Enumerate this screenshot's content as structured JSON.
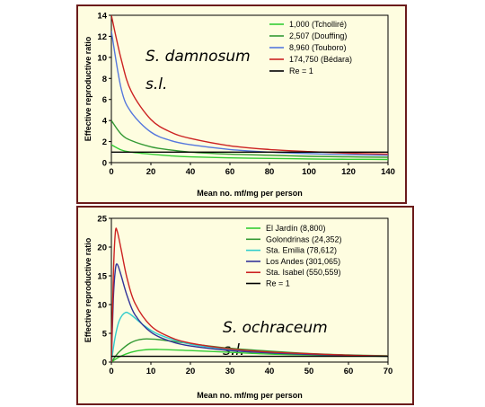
{
  "chart_data": [
    {
      "type": "line",
      "xlabel": "Mean no. mf/mg per person",
      "ylabel": "Effective reproductive ratio",
      "xlim": [
        0,
        140
      ],
      "ylim": [
        0,
        14
      ],
      "xticks": [
        0,
        20,
        40,
        60,
        80,
        100,
        120,
        140
      ],
      "yticks": [
        0,
        2,
        4,
        6,
        8,
        10,
        12,
        14
      ],
      "annotation": [
        "S. damnosum",
        "s.l."
      ],
      "legend_position": "top-right",
      "series": [
        {
          "name": "1,000 (Tcholliré)",
          "color": "#33cc33",
          "x": [
            0,
            5,
            10,
            20,
            30,
            40,
            60,
            80,
            100,
            120,
            140
          ],
          "y": [
            1.7,
            1.2,
            1.0,
            0.8,
            0.65,
            0.55,
            0.45,
            0.4,
            0.35,
            0.32,
            0.3
          ]
        },
        {
          "name": "2,507 (Douffing)",
          "color": "#339933",
          "x": [
            0,
            5,
            10,
            20,
            30,
            40,
            60,
            80,
            100,
            120,
            140
          ],
          "y": [
            4.0,
            2.7,
            2.1,
            1.5,
            1.2,
            1.0,
            0.8,
            0.7,
            0.6,
            0.55,
            0.5
          ]
        },
        {
          "name": "8,960 (Touboro)",
          "color": "#5577dd",
          "x": [
            0,
            5,
            10,
            20,
            30,
            40,
            60,
            80,
            100,
            120,
            140
          ],
          "y": [
            12.5,
            7.0,
            4.8,
            2.9,
            2.1,
            1.7,
            1.25,
            1.0,
            0.85,
            0.75,
            0.7
          ]
        },
        {
          "name": "174,750 (Bédara)",
          "color": "#cc2222",
          "x": [
            0,
            5,
            10,
            20,
            30,
            40,
            60,
            80,
            100,
            120,
            140
          ],
          "y": [
            14,
            9.8,
            6.8,
            4.1,
            2.9,
            2.3,
            1.6,
            1.25,
            1.05,
            0.9,
            0.8
          ]
        },
        {
          "name": "Re = 1",
          "color": "#000000",
          "x": [
            0,
            140
          ],
          "y": [
            1,
            1
          ]
        }
      ]
    },
    {
      "type": "line",
      "xlabel": "Mean no. mf/mg per person",
      "ylabel": "Effective reproductive ratio",
      "xlim": [
        0,
        70
      ],
      "ylim": [
        0,
        25
      ],
      "xticks": [
        0,
        10,
        20,
        30,
        40,
        50,
        60,
        70
      ],
      "yticks": [
        0,
        5,
        10,
        15,
        20,
        25
      ],
      "annotation": [
        "S. ochraceum",
        "s.l."
      ],
      "legend_position": "top-right",
      "series": [
        {
          "name": "El Jardín (8,800)",
          "color": "#33cc33",
          "x": [
            0,
            2,
            5,
            8,
            12,
            20,
            30,
            40,
            50,
            60,
            70
          ],
          "y": [
            0,
            0.9,
            1.7,
            2.1,
            2.2,
            2.0,
            1.7,
            1.4,
            1.25,
            1.1,
            1.0
          ]
        },
        {
          "name": "Golondrinas (24,352)",
          "color": "#339933",
          "x": [
            0,
            2,
            5,
            8,
            12,
            20,
            30,
            40,
            50,
            60,
            70
          ],
          "y": [
            0,
            1.8,
            3.4,
            4.0,
            3.9,
            3.2,
            2.4,
            1.9,
            1.5,
            1.25,
            1.1
          ]
        },
        {
          "name": "Sta. Emilia (78,612)",
          "color": "#33cccc",
          "x": [
            0,
            1,
            2,
            3.5,
            5,
            8,
            12,
            20,
            30,
            40,
            50,
            60,
            70
          ],
          "y": [
            0,
            4.5,
            7.2,
            8.6,
            8.2,
            6.5,
            4.8,
            3.1,
            2.2,
            1.7,
            1.4,
            1.2,
            1.05
          ]
        },
        {
          "name": "Los Andes (301,065)",
          "color": "#333399",
          "x": [
            0,
            0.5,
            1,
            1.5,
            2.5,
            4,
            6,
            10,
            15,
            20,
            30,
            40,
            50,
            60,
            70
          ],
          "y": [
            0,
            11,
            16,
            17,
            15,
            11.5,
            8.2,
            5.2,
            3.6,
            2.8,
            2.0,
            1.6,
            1.35,
            1.15,
            1.0
          ]
        },
        {
          "name": "Sta. Isabel (550,559)",
          "color": "#cc2222",
          "x": [
            0,
            0.5,
            1,
            1.5,
            2.5,
            4,
            6,
            10,
            15,
            20,
            30,
            40,
            50,
            60,
            70
          ],
          "y": [
            0,
            15,
            22.5,
            22.7,
            19.5,
            14.5,
            10.2,
            6.3,
            4.3,
            3.3,
            2.3,
            1.75,
            1.45,
            1.2,
            1.05
          ]
        },
        {
          "name": "Re = 1",
          "color": "#000000",
          "x": [
            0,
            70
          ],
          "y": [
            1,
            1
          ]
        }
      ]
    }
  ]
}
